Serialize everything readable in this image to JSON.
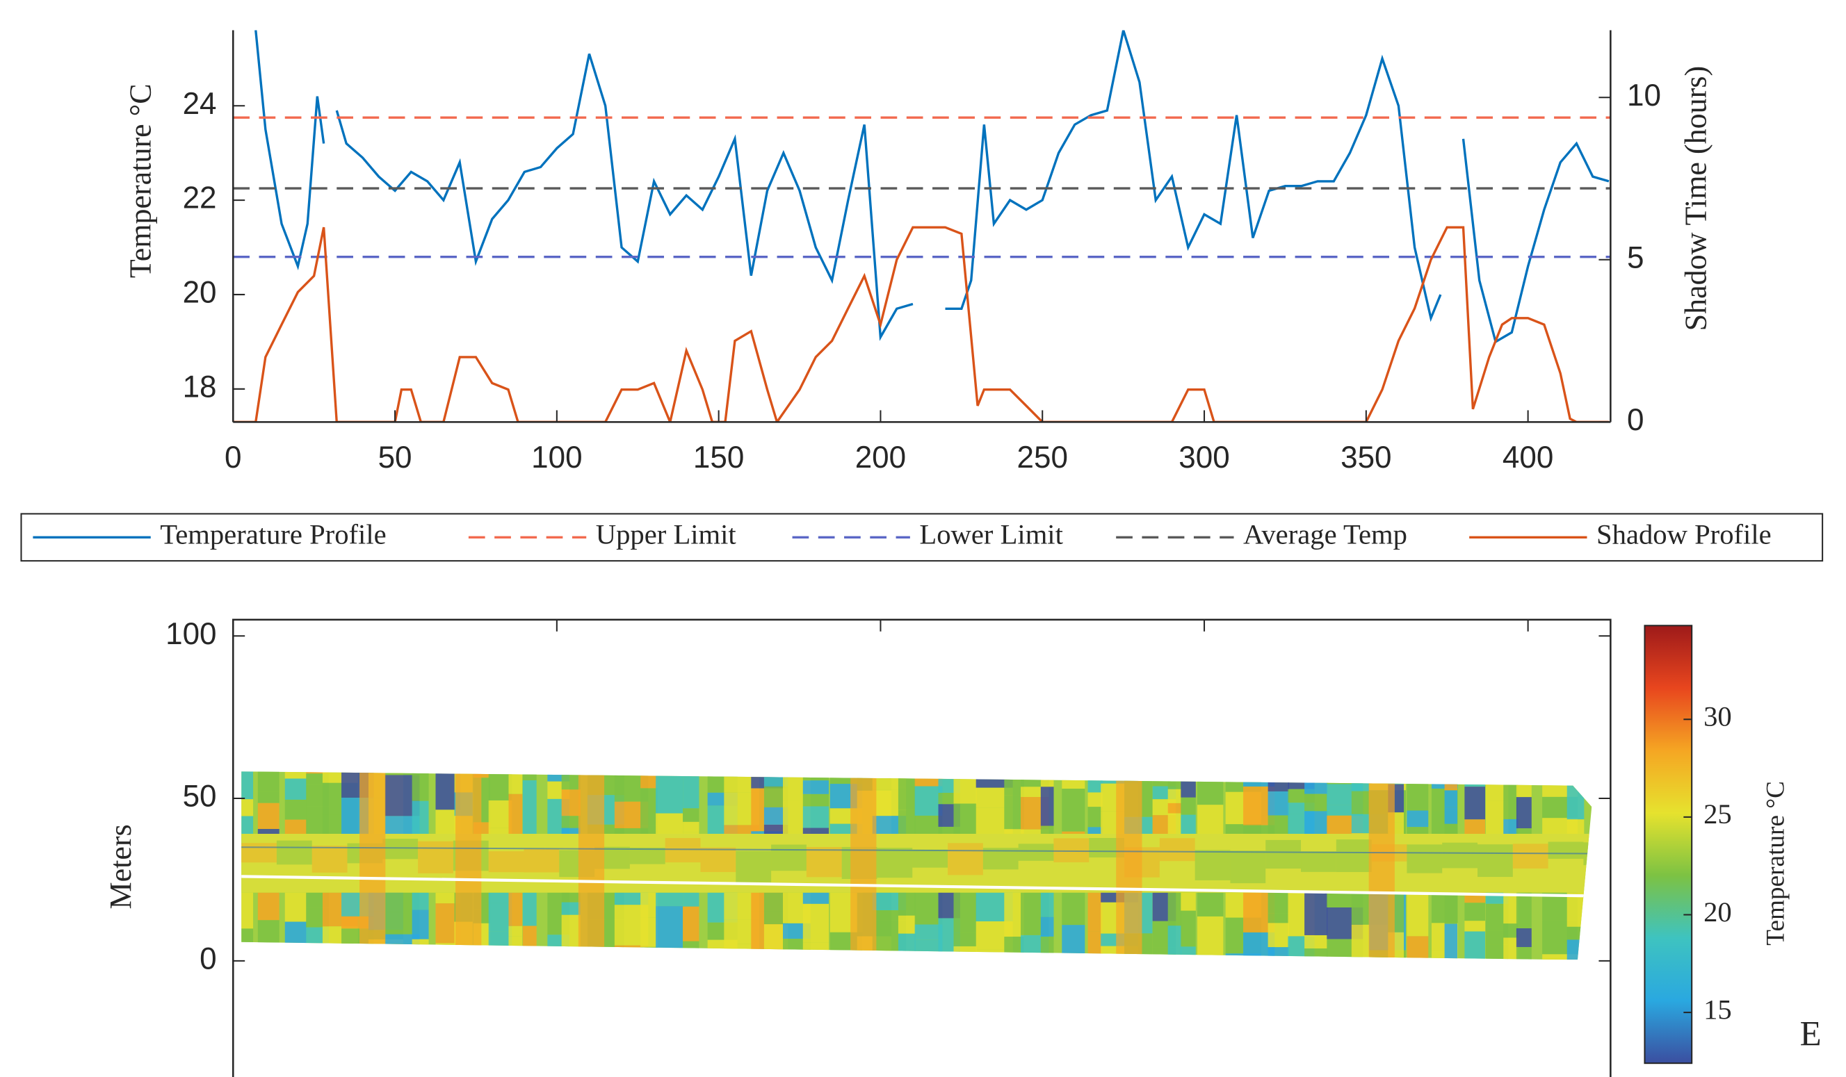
{
  "chart_data": [
    {
      "type": "line",
      "xlabel": null,
      "ylabel": "Temperature °C",
      "y2label": "Shadow Time (hours)",
      "xlim": [
        0,
        425.5
      ],
      "xticks": [
        0,
        50,
        100,
        150,
        200,
        250,
        300,
        350,
        400
      ],
      "ylim": [
        17.3,
        25.6
      ],
      "yticks": [
        18,
        20,
        22,
        24
      ],
      "y2lim": [
        0,
        12.07
      ],
      "y2ticks": [
        0,
        5,
        10
      ],
      "legend": "below",
      "series": [
        {
          "name": "Temperature Profile",
          "color": "#0072bd",
          "linestyle": "solid",
          "x": [
            7,
            10,
            15,
            20,
            23,
            26,
            28,
            30,
            32,
            35,
            40,
            45,
            50,
            55,
            60,
            65,
            70,
            75,
            80,
            85,
            90,
            95,
            100,
            105,
            110,
            115,
            120,
            125,
            130,
            135,
            140,
            145,
            150,
            155,
            160,
            165,
            170,
            175,
            180,
            185,
            190,
            195,
            200,
            205,
            210,
            215,
            220,
            225,
            228,
            232,
            235,
            240,
            245,
            250,
            255,
            260,
            265,
            270,
            275,
            280,
            285,
            290,
            295,
            300,
            305,
            310,
            315,
            320,
            325,
            330,
            335,
            340,
            345,
            350,
            355,
            360,
            365,
            370,
            373,
            377,
            380,
            385,
            390,
            395,
            400,
            405,
            410,
            415,
            420,
            425
          ],
          "values": [
            25.6,
            23.5,
            21.5,
            20.6,
            21.5,
            24.2,
            23.2,
            null,
            23.9,
            23.2,
            22.9,
            22.5,
            22.2,
            22.6,
            22.4,
            22.0,
            22.8,
            20.7,
            21.6,
            22.0,
            22.6,
            22.7,
            23.1,
            23.4,
            25.1,
            24.0,
            21.0,
            20.7,
            22.4,
            21.7,
            22.1,
            21.8,
            22.5,
            23.3,
            20.4,
            22.2,
            23.0,
            22.2,
            21.0,
            20.3,
            22.0,
            23.6,
            19.1,
            19.7,
            19.8,
            null,
            19.7,
            19.7,
            20.3,
            23.6,
            21.5,
            22.0,
            21.8,
            22.0,
            23.0,
            23.6,
            23.8,
            23.9,
            25.6,
            24.5,
            22.0,
            22.5,
            21.0,
            21.7,
            21.5,
            23.8,
            21.2,
            22.2,
            22.3,
            22.3,
            22.4,
            22.4,
            23.0,
            23.8,
            25.0,
            24.0,
            21.0,
            19.5,
            20.0,
            null,
            23.3,
            20.3,
            19.0,
            19.2,
            20.6,
            21.8,
            22.8,
            23.2,
            22.5,
            22.4
          ]
        },
        {
          "name": "Upper Limit",
          "color": "#f26a4f",
          "linestyle": "dashed",
          "x": [
            0,
            425.5
          ],
          "values": [
            23.75,
            23.75
          ]
        },
        {
          "name": "Lower Limit",
          "color": "#5b67c6",
          "linestyle": "dashed",
          "x": [
            0,
            425.5
          ],
          "values": [
            20.8,
            20.8
          ]
        },
        {
          "name": "Average Temp",
          "color": "#595959",
          "linestyle": "dashed",
          "x": [
            0,
            425.5
          ],
          "values": [
            22.25,
            22.25
          ]
        },
        {
          "name": "Shadow Profile",
          "color": "#d95319",
          "linestyle": "solid",
          "axis": "y2",
          "x": [
            0,
            7,
            10,
            15,
            20,
            25,
            28,
            32,
            50,
            52,
            55,
            58,
            65,
            70,
            75,
            80,
            85,
            88,
            115,
            120,
            125,
            130,
            135,
            140,
            145,
            148,
            152,
            155,
            160,
            165,
            168,
            175,
            180,
            185,
            190,
            195,
            200,
            205,
            210,
            220,
            225,
            230,
            232,
            240,
            245,
            250,
            290,
            295,
            300,
            303,
            350,
            355,
            360,
            365,
            370,
            375,
            380,
            383,
            388,
            392,
            395,
            400,
            405,
            410,
            413,
            415,
            425
          ],
          "values": [
            0,
            0,
            2.0,
            3.0,
            4.0,
            4.5,
            6.0,
            0,
            0,
            1.0,
            1.0,
            0,
            0,
            2.0,
            2.0,
            1.2,
            1.0,
            0,
            0,
            1.0,
            1.0,
            1.2,
            0,
            2.2,
            1.0,
            0,
            0,
            2.5,
            2.8,
            1.0,
            0,
            1.0,
            2.0,
            2.5,
            3.5,
            4.5,
            3.0,
            5.0,
            6.0,
            6.0,
            5.8,
            0.5,
            1.0,
            1.0,
            0.5,
            0,
            0,
            1.0,
            1.0,
            0,
            0,
            1.0,
            2.5,
            3.5,
            5.0,
            6.0,
            6.0,
            0.4,
            2.0,
            3.0,
            3.2,
            3.2,
            3.0,
            1.5,
            0.1,
            0,
            0
          ]
        }
      ]
    },
    {
      "type": "heatmap",
      "ylabel": "Meters",
      "xlim": [
        0,
        425.5
      ],
      "xticks": [
        0,
        100,
        200,
        300,
        400
      ],
      "ylim": [
        -31.5,
        105
      ],
      "yticks": [
        0,
        50,
        100
      ],
      "colorbar_label": "Temperature °C",
      "clim": [
        12.4,
        34.8
      ],
      "cticks": [
        15,
        20,
        25,
        30
      ],
      "colormap": [
        "#3b4ea0",
        "#2aa8e0",
        "#3ec3c0",
        "#7cc243",
        "#e6e22e",
        "#f5a623",
        "#e8461e",
        "#9e1a1a"
      ],
      "panel_label": "E"
    }
  ]
}
